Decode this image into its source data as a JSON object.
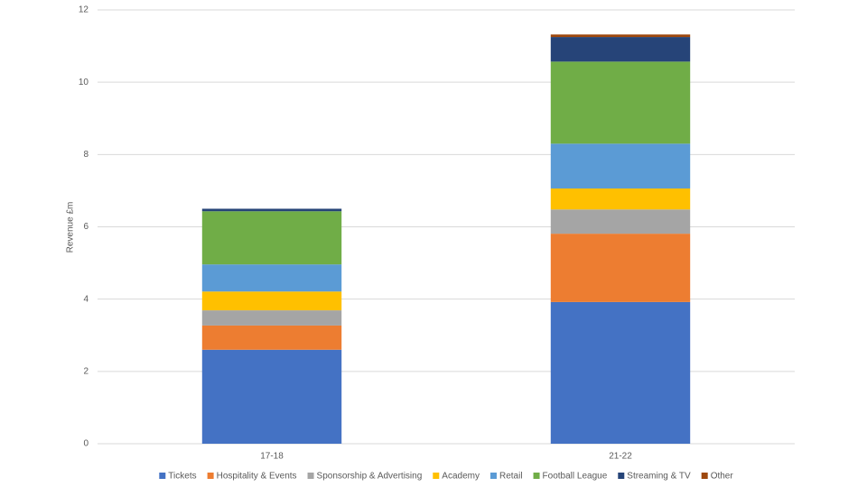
{
  "chart_data": {
    "type": "stacked_bar",
    "y_label": "Revenue £m",
    "categories": [
      "17-18",
      "21-22"
    ],
    "series": [
      {
        "name": "Tickets",
        "color": "#4472c4",
        "values": [
          2.6,
          3.92
        ]
      },
      {
        "name": "Hospitality & Events",
        "color": "#ed7d31",
        "values": [
          0.67,
          1.89
        ]
      },
      {
        "name": "Sponsorship & Advertising",
        "color": "#a5a5a5",
        "values": [
          0.42,
          0.67
        ]
      },
      {
        "name": "Academy",
        "color": "#ffc000",
        "values": [
          0.52,
          0.58
        ]
      },
      {
        "name": "Retail",
        "color": "#5b9bd5",
        "values": [
          0.75,
          1.24
        ]
      },
      {
        "name": "Football League",
        "color": "#70ad47",
        "values": [
          1.47,
          2.27
        ]
      },
      {
        "name": "Streaming & TV",
        "color": "#264478",
        "values": [
          0.07,
          0.68
        ]
      },
      {
        "name": "Other",
        "color": "#9e480e",
        "values": [
          0.0,
          0.07
        ]
      }
    ],
    "ylim": [
      0,
      12
    ],
    "yticks": [
      0,
      2,
      4,
      6,
      8,
      10,
      12
    ],
    "grid": true,
    "legend": "bottom"
  }
}
